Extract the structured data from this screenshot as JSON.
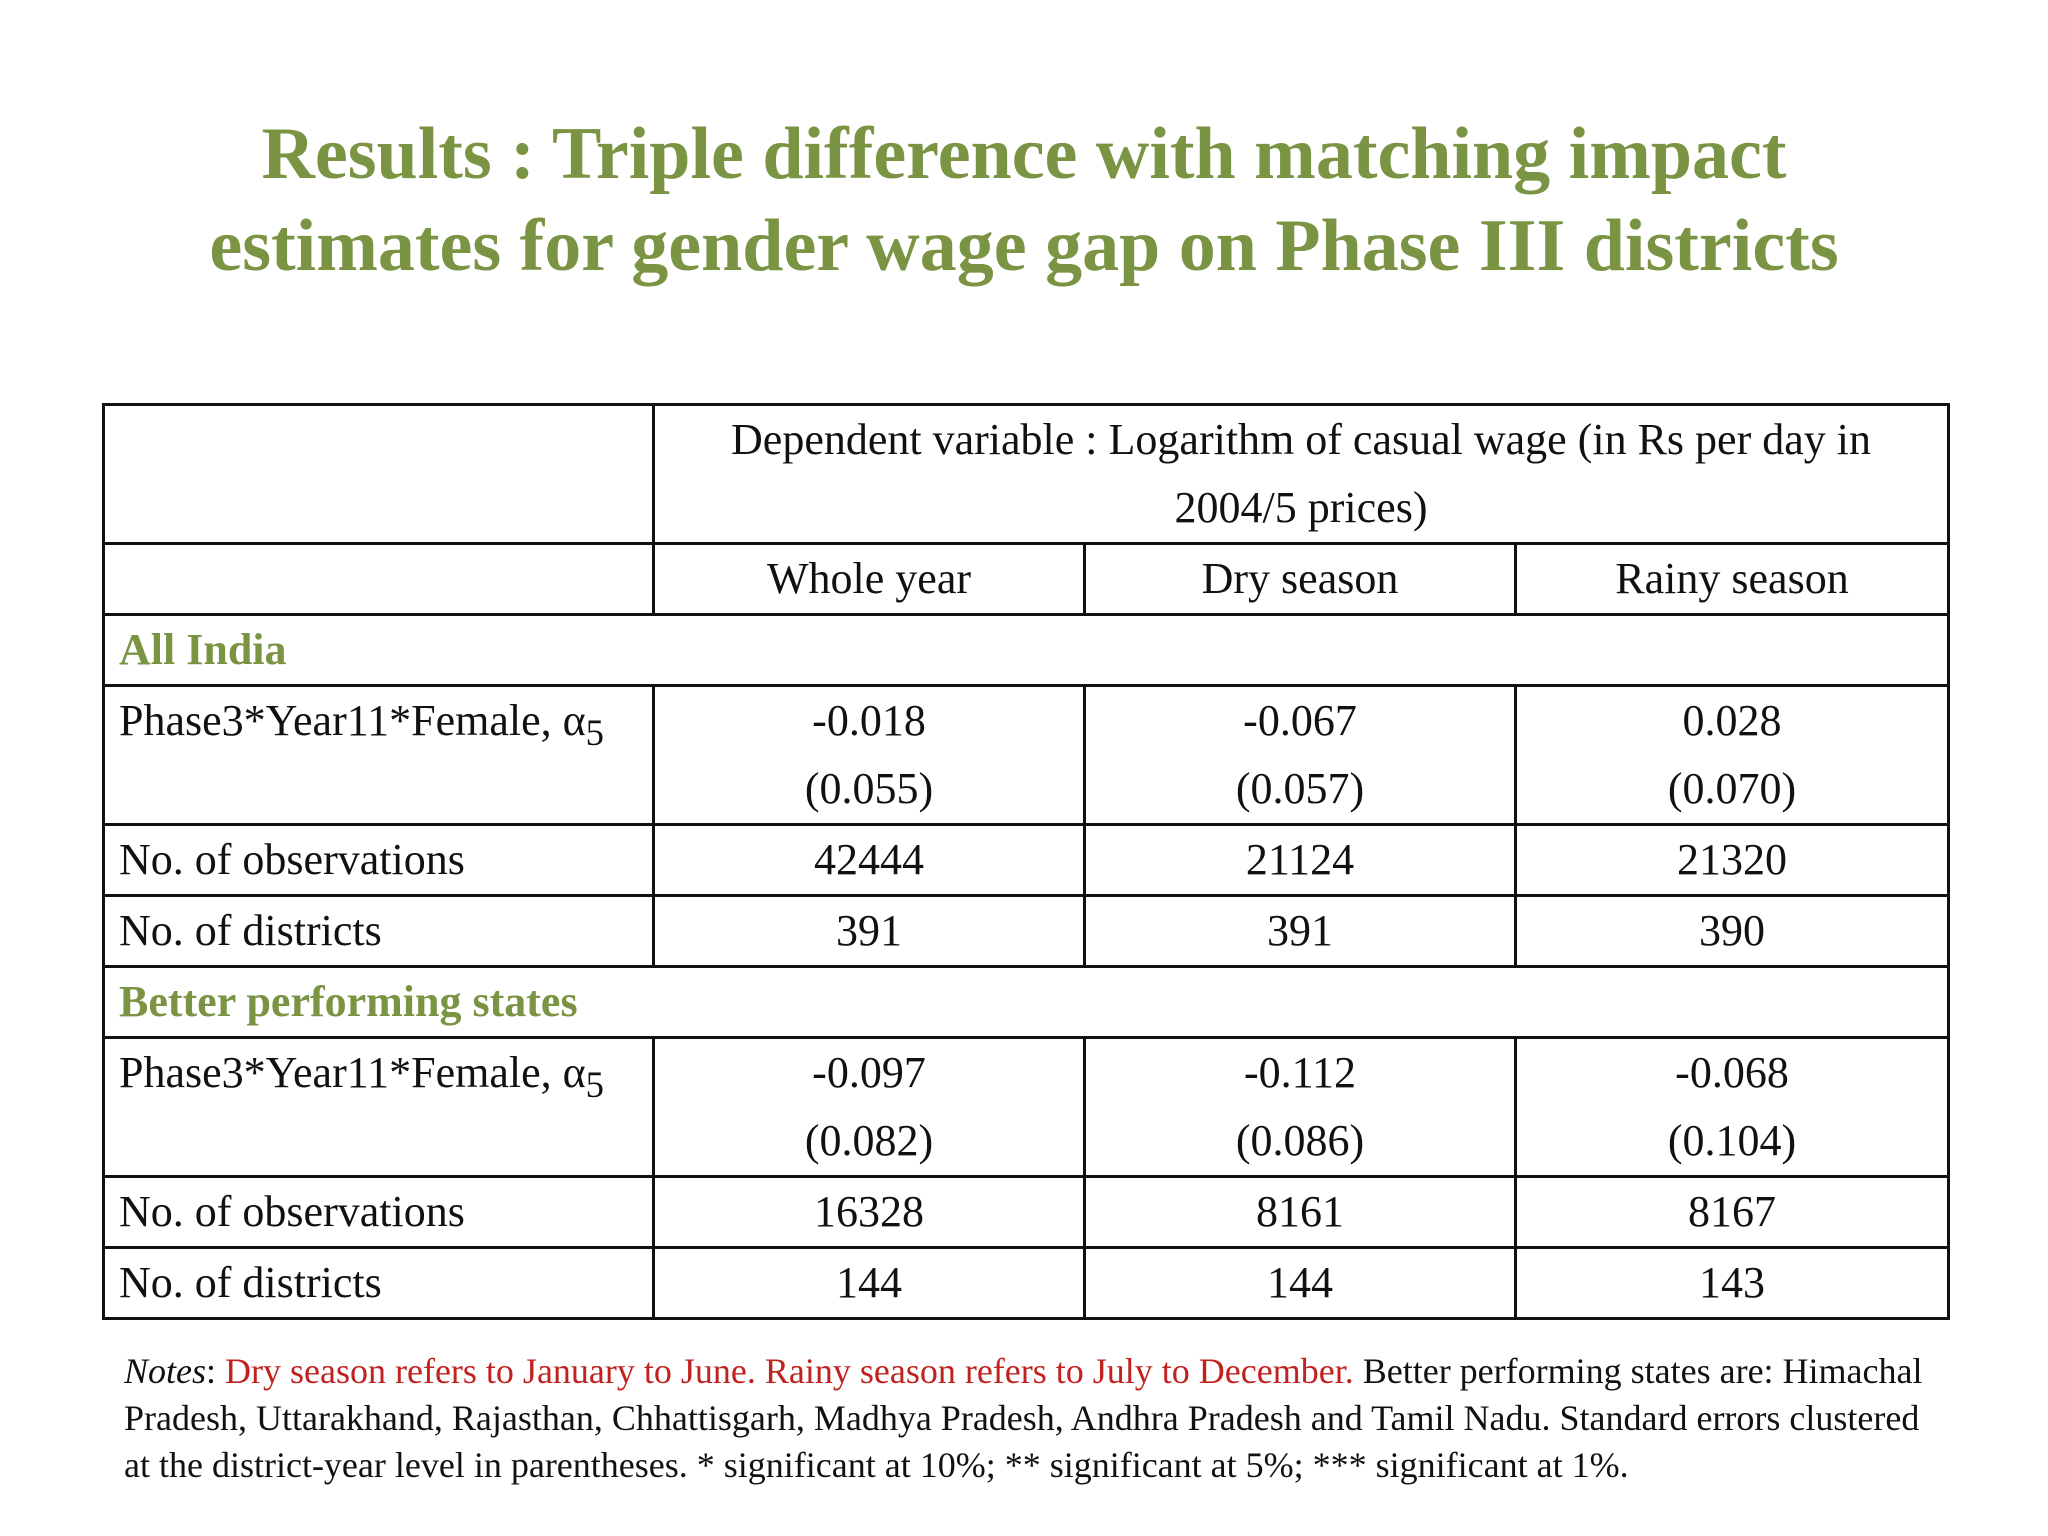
{
  "title": {
    "line1": "Results : Triple difference with matching impact",
    "line2": "estimates for gender wage gap on Phase III districts"
  },
  "table": {
    "dependent_variable": {
      "line1": "Dependent variable : Logarithm of casual wage (in Rs per day in",
      "line2": "2004/5 prices)"
    },
    "columns": [
      "Whole year",
      "Dry season",
      "Rainy season"
    ],
    "groups": [
      {
        "label": "All India",
        "coef_label": "Phase3*Year11*Female, α",
        "coef_subscript": "5",
        "coefficients": [
          "-0.018",
          "-0.067",
          "0.028"
        ],
        "std_errors": [
          "(0.055)",
          "(0.057)",
          "(0.070)"
        ],
        "observations_label": "No. of observations",
        "observations": [
          "42444",
          "21124",
          "21320"
        ],
        "districts_label": "No. of districts",
        "districts": [
          "391",
          "391",
          "390"
        ]
      },
      {
        "label": "Better performing states",
        "coef_label": "Phase3*Year11*Female, α",
        "coef_subscript": "5",
        "coefficients": [
          "-0.097",
          "-0.112",
          "-0.068"
        ],
        "std_errors": [
          "(0.082)",
          "(0.086)",
          "(0.104)"
        ],
        "observations_label": "No. of observations",
        "observations": [
          "16328",
          "8161",
          "8167"
        ],
        "districts_label": "No. of districts",
        "districts": [
          "144",
          "144",
          "143"
        ]
      }
    ]
  },
  "notes": {
    "label": "Notes",
    "colon": ": ",
    "highlight": "Dry season refers to January to June. Rainy season refers to July to December.",
    "rest": " Better performing  states are: Himachal Pradesh, Uttarakhand, Rajasthan, Chhattisgarh, Madhya Pradesh, Andhra Pradesh and Tamil Nadu. Standard errors clustered at the district-year level in parentheses. * significant at 10%; ** significant at 5%; *** significant at 1%."
  },
  "colors": {
    "title_green": "#7a9443",
    "note_red": "#c0221f",
    "border": "#111111"
  }
}
